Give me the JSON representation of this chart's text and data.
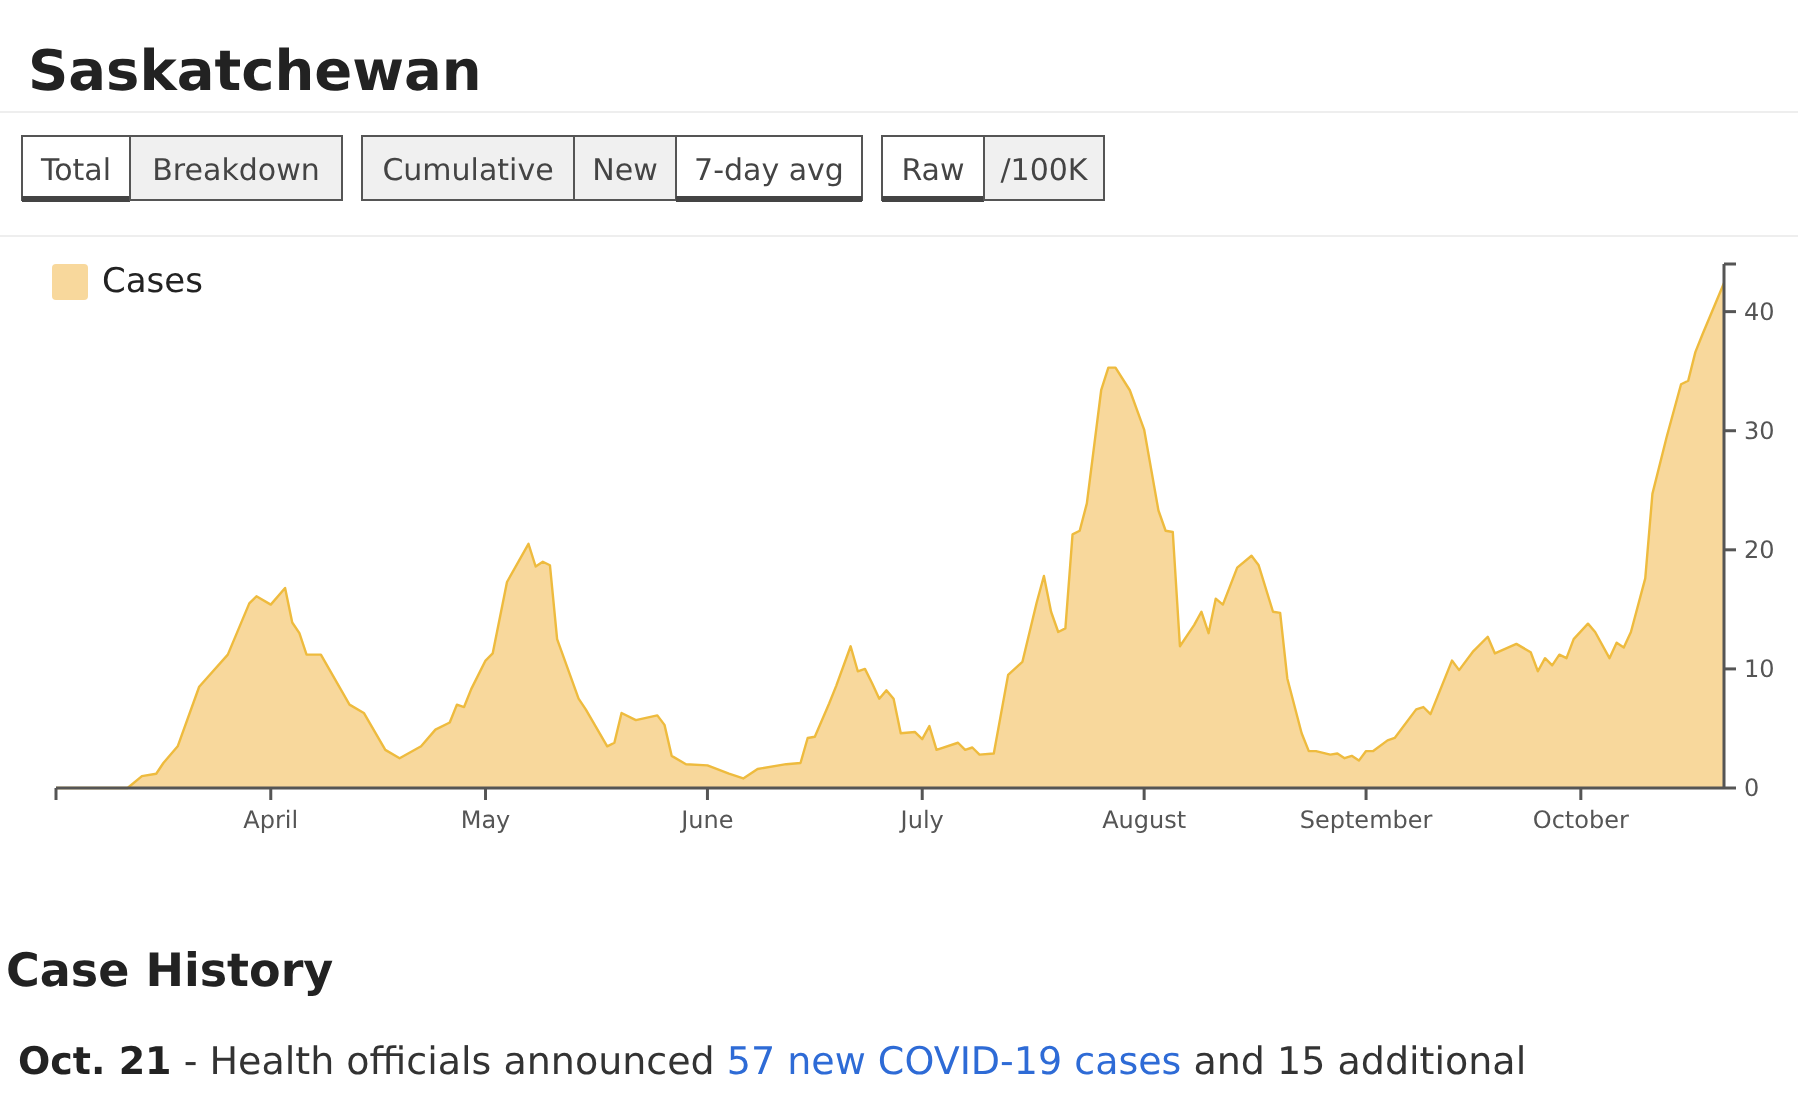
{
  "chart_data": {
    "type": "area",
    "title": "Saskatchewan",
    "annotations": [
      "Total",
      "Breakdown",
      "Cumulative",
      "New",
      "7-day avg",
      "Raw",
      "/100K",
      "Case History",
      "Oct. 21",
      " - Health officials announced ",
      "57 new COVID-19 cases",
      " and 15 additional"
    ],
    "x": [
      "--03-02",
      "--03-12",
      "--03-14",
      "--03-16",
      "--03-17",
      "--03-19",
      "--03-22",
      "--03-26",
      "--03-29",
      "--03-30",
      "--04-01",
      "--04-03",
      "--04-04",
      "--04-05",
      "--04-06",
      "--04-08",
      "--04-12",
      "--04-14",
      "--04-17",
      "--04-19",
      "--04-22",
      "--04-24",
      "--04-26",
      "--04-27",
      "--04-28",
      "--04-29",
      "--05-01",
      "--05-02",
      "--05-04",
      "--05-07",
      "--05-08",
      "--05-09",
      "--05-10",
      "--05-11",
      "--05-14",
      "--05-15",
      "--05-18",
      "--05-19",
      "--05-20",
      "--05-22",
      "--05-25",
      "--05-26",
      "--05-27",
      "--05-29",
      "--06-01",
      "--06-04",
      "--06-06",
      "--06-08",
      "--06-12",
      "--06-14",
      "--06-15",
      "--06-16",
      "--06-18",
      "--06-19",
      "--06-21",
      "--06-22",
      "--06-23",
      "--06-24",
      "--06-25",
      "--06-26",
      "--06-27",
      "--06-28",
      "--06-30",
      "--07-01",
      "--07-02",
      "--07-03",
      "--07-06",
      "--07-07",
      "--07-08",
      "--07-09",
      "--07-11",
      "--07-13",
      "--07-15",
      "--07-17",
      "--07-18",
      "--07-19",
      "--07-20",
      "--07-21",
      "--07-22",
      "--07-23",
      "--07-24",
      "--07-26",
      "--07-27",
      "--07-28",
      "--07-30",
      "--08-01",
      "--08-03",
      "--08-04",
      "--08-05",
      "--08-06",
      "--08-08",
      "--08-09",
      "--08-10",
      "--08-11",
      "--08-12",
      "--08-14",
      "--08-16",
      "--08-17",
      "--08-19",
      "--08-20",
      "--08-21",
      "--08-23",
      "--08-24",
      "--08-25",
      "--08-27",
      "--08-28",
      "--08-29",
      "--08-30",
      "--08-31",
      "--09-01",
      "--09-02",
      "--09-04",
      "--09-05",
      "--09-08",
      "--09-09",
      "--09-10",
      "--09-13",
      "--09-14",
      "--09-16",
      "--09-18",
      "--09-19",
      "--09-22",
      "--09-24",
      "--09-25",
      "--09-26",
      "--09-27",
      "--09-28",
      "--09-29",
      "--09-30",
      "--10-02",
      "--10-03",
      "--10-05",
      "--10-06",
      "--10-07",
      "--10-08",
      "--10-10",
      "--10-11",
      "--10-13",
      "--10-15",
      "--10-16",
      "--10-17",
      "--10-18",
      "--10-21"
    ],
    "series": [
      {
        "name": "Cases",
        "color": "#f8d89c",
        "values": [
          0,
          0,
          1,
          1.2,
          2.1,
          3.5,
          8.5,
          11.2,
          15.5,
          16.1,
          15.4,
          16.8,
          13.9,
          13,
          11.2,
          11.2,
          7,
          6.3,
          3.2,
          2.5,
          3.5,
          4.9,
          5.5,
          7,
          6.8,
          8.3,
          10.7,
          11.3,
          17.3,
          20.5,
          18.6,
          19,
          18.7,
          12.5,
          7.5,
          6.6,
          3.5,
          3.8,
          6.3,
          5.7,
          6.1,
          5.3,
          2.7,
          2,
          1.9,
          1.2,
          0.8,
          1.6,
          2,
          2.1,
          4.2,
          4.3,
          7.1,
          8.6,
          11.9,
          9.8,
          10,
          8.8,
          7.5,
          8.2,
          7.5,
          4.6,
          4.7,
          4.1,
          5.2,
          3.2,
          3.8,
          3.2,
          3.4,
          2.8,
          2.9,
          9.5,
          10.6,
          15.6,
          17.8,
          14.8,
          13.1,
          13.4,
          21.3,
          21.6,
          23.9,
          33.4,
          35.3,
          35.3,
          33.4,
          30.1,
          23.3,
          21.6,
          21.5,
          11.9,
          13.7,
          14.8,
          13,
          15.9,
          15.4,
          18.5,
          19.5,
          18.7,
          14.8,
          14.7,
          9.2,
          4.6,
          3.1,
          3.1,
          2.8,
          2.9,
          2.5,
          2.7,
          2.3,
          3.1,
          3.1,
          4,
          4.2,
          6.6,
          6.8,
          6.2,
          10.7,
          9.9,
          11.5,
          12.7,
          11.3,
          12.1,
          11.4,
          9.8,
          10.9,
          10.3,
          11.2,
          10.9,
          12.5,
          13.8,
          13.1,
          10.9,
          12.2,
          11.8,
          13.1,
          17.6,
          24.7,
          29.5,
          33.9,
          34.2,
          36.6,
          38.1,
          42.4
        ]
      }
    ],
    "xlim": [
      "--03-02",
      "--10-21"
    ],
    "xticks": [
      {
        "value": "--04-01",
        "label": "April"
      },
      {
        "value": "--05-01",
        "label": "May"
      },
      {
        "value": "--06-01",
        "label": "June"
      },
      {
        "value": "--07-01",
        "label": "July"
      },
      {
        "value": "--08-01",
        "label": "August"
      },
      {
        "value": "--09-01",
        "label": "September"
      },
      {
        "value": "--10-01",
        "label": "October"
      }
    ],
    "ylim": [
      0,
      44
    ],
    "yticks": [
      0,
      10,
      20,
      30,
      40
    ],
    "legend": "top left",
    "grid": false
  }
}
